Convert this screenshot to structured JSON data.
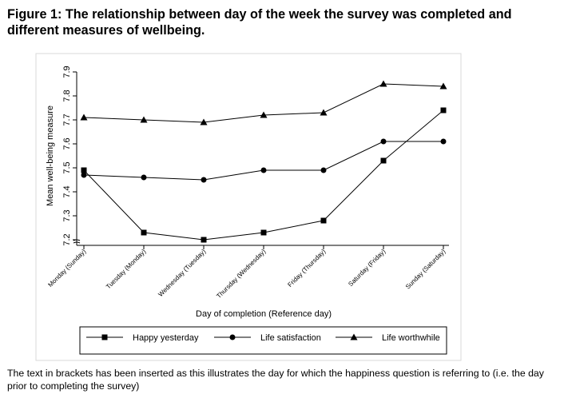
{
  "figure_title": "Figure 1: The relationship between day of the week the survey was completed and different measures of wellbeing.",
  "footnote": "The text in brackets has been inserted as this illustrates the day for which the happiness question is referring to (i.e. the day prior to completing the survey)",
  "chart_data": {
    "type": "line",
    "title": "",
    "xlabel": "Day of completion (Reference day)",
    "ylabel": "Mean well-being measure",
    "categories": [
      "Monday (Sunday)",
      "Tuesday (Monday)",
      "Wednesday (Tuesday)",
      "Thursday (Wednesday)",
      "Friday (Thursday)",
      "Saturday (Friday)",
      "Sunday (Saturday)"
    ],
    "ylim": [
      7.2,
      7.9
    ],
    "yticks": [
      "7.2",
      "7.3",
      "7.4",
      "7.5",
      "7.6",
      "7.7",
      "7.8",
      "7.9"
    ],
    "y_axis_break": true,
    "grid": false,
    "legend_position": "bottom",
    "series": [
      {
        "name": "Happy yesterday",
        "marker": "square",
        "values": [
          7.49,
          7.23,
          7.2,
          7.23,
          7.28,
          7.53,
          7.74
        ]
      },
      {
        "name": "Life satisfaction",
        "marker": "circle",
        "values": [
          7.47,
          7.46,
          7.45,
          7.49,
          7.49,
          7.61,
          7.61
        ]
      },
      {
        "name": "Life worthwhile",
        "marker": "triangle",
        "values": [
          7.71,
          7.7,
          7.69,
          7.72,
          7.73,
          7.85,
          7.84
        ]
      }
    ]
  }
}
